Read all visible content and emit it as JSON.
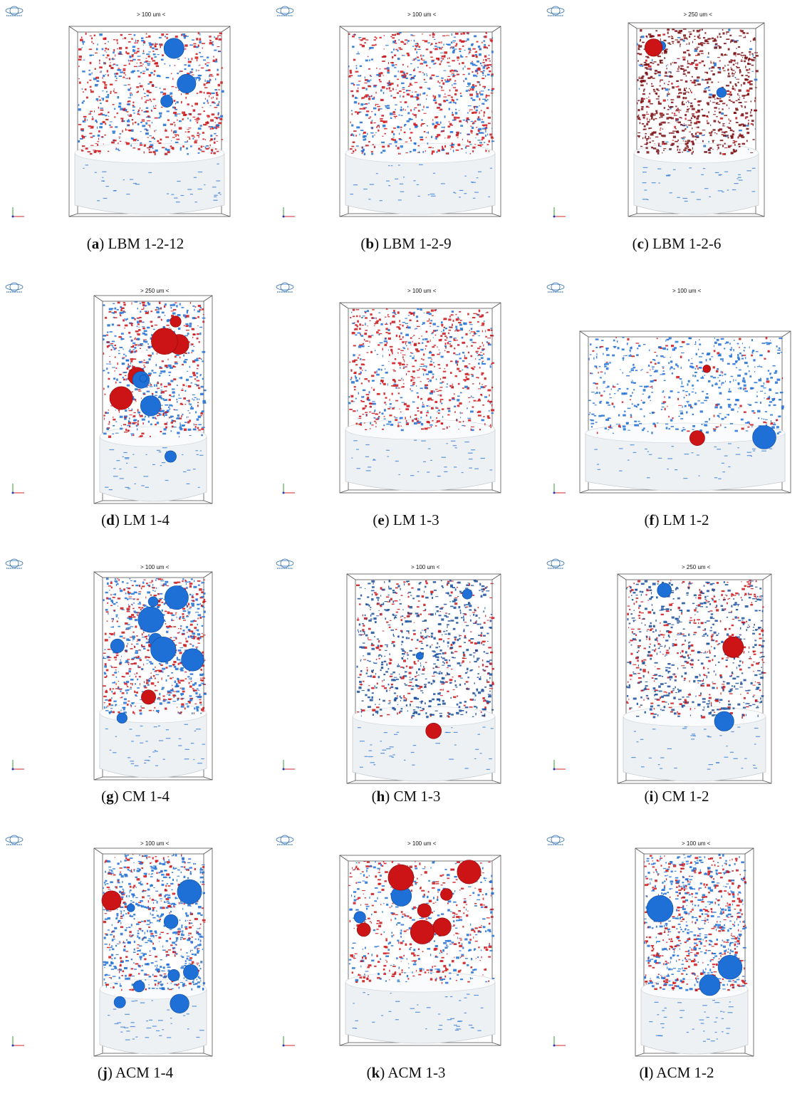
{
  "panels": [
    {
      "letter": "a",
      "label": "LBM 1-2-12",
      "scale": "> 100 um <",
      "style": "mixed",
      "red": 0.55,
      "blue": 0.35,
      "bubbles": "few"
    },
    {
      "letter": "b",
      "label": "LBM 1-2-9",
      "scale": "> 100 um <",
      "style": "mixed",
      "red": 0.6,
      "blue": 0.4,
      "bubbles": "none"
    },
    {
      "letter": "c",
      "label": "LBM 1-2-6",
      "scale": "> 250 um <",
      "style": "darkred",
      "red": 0.7,
      "blue": 0.05,
      "bubbles": "few"
    },
    {
      "letter": "d",
      "label": "LM 1-4",
      "scale": "> 250 um <",
      "style": "tall",
      "red": 0.35,
      "blue": 0.45,
      "bubbles": "many-red"
    },
    {
      "letter": "e",
      "label": "LM 1-3",
      "scale": "> 100 um <",
      "style": "mixed",
      "red": 0.6,
      "blue": 0.3,
      "bubbles": "none"
    },
    {
      "letter": "f",
      "label": "LM 1-2",
      "scale": "> 100 um <",
      "style": "wide",
      "red": 0.1,
      "blue": 0.6,
      "bubbles": "few-red"
    },
    {
      "letter": "g",
      "label": "CM 1-4",
      "scale": "> 100 um <",
      "style": "tall",
      "red": 0.45,
      "blue": 0.5,
      "bubbles": "many-blue"
    },
    {
      "letter": "h",
      "label": "CM 1-3",
      "scale": "> 100 um <",
      "style": "dense",
      "red": 0.3,
      "blue": 0.65,
      "bubbles": "few"
    },
    {
      "letter": "i",
      "label": "CM 1-2",
      "scale": "> 250 um <",
      "style": "dense",
      "red": 0.35,
      "blue": 0.6,
      "bubbles": "few"
    },
    {
      "letter": "j",
      "label": "ACM 1-4",
      "scale": "> 100 um <",
      "style": "tall",
      "red": 0.25,
      "blue": 0.65,
      "bubbles": "many-blue"
    },
    {
      "letter": "k",
      "label": "ACM 1-3",
      "scale": "> 100 um <",
      "style": "mixed",
      "red": 0.4,
      "blue": 0.3,
      "bubbles": "many-red"
    },
    {
      "letter": "l",
      "label": "ACM 1-2",
      "scale": "> 100 um <",
      "style": "tall",
      "red": 0.4,
      "blue": 0.55,
      "bubbles": "few"
    }
  ],
  "colors": {
    "red": "#cc1417",
    "darkred": "#7a0d10",
    "blue": "#1e6fd6",
    "cylinder": "#eef1f4",
    "box": "#555555"
  }
}
